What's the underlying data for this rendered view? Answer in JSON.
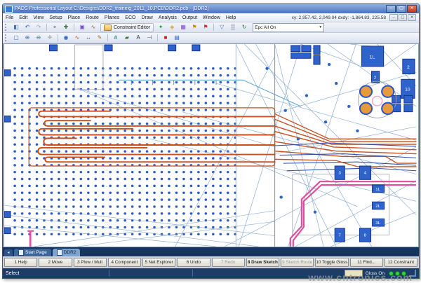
{
  "window": {
    "title": "PADS Professional Layout  C:\\Designs\\DDR2_training_2011_10.PCB\\DDR2.pcb - [DDR2]",
    "controls": {
      "minimize": "–",
      "maximize": "▢",
      "close": "✕"
    }
  },
  "menu_bar": {
    "items": [
      "File",
      "Edit",
      "View",
      "Setup",
      "Place",
      "Route",
      "Planes",
      "ECO",
      "Draw",
      "Analysis",
      "Output",
      "Window",
      "Help"
    ],
    "readout": "xy: 2,957.42, 2,049.04    dxdy: -1,864.83, 225.58",
    "child_controls": [
      "–",
      "▢",
      "✕"
    ]
  },
  "toolbars": {
    "row1a": [
      {
        "name": "save-icon",
        "glyph": "◧",
        "color": "#4a6fb5"
      },
      {
        "name": "undo-icon",
        "glyph": "↶",
        "color": "#2a62c9"
      },
      {
        "name": "redo-icon",
        "glyph": "↷",
        "color": "#9aa4b5"
      },
      {
        "sep": true
      },
      {
        "name": "select-icon",
        "glyph": "⌖",
        "color": "#555555"
      },
      {
        "name": "move-icon",
        "glyph": "✚",
        "color": "#3a7a3a"
      },
      {
        "sep": true
      },
      {
        "name": "place-part-icon",
        "glyph": "▣",
        "color": "#7a4bd0"
      },
      {
        "name": "route-icon",
        "glyph": "∿",
        "color": "#c8501e"
      }
    ],
    "constraint_editor_label": "Constraint Editor",
    "row1b": [
      {
        "name": "drc-ok-icon",
        "glyph": "✦",
        "color": "#1f9d2f"
      },
      {
        "name": "drc-info-icon",
        "glyph": "◈",
        "color": "#e0a020"
      },
      {
        "name": "layers-icon",
        "glyph": "▦",
        "color": "#8a4ad0"
      },
      {
        "name": "hazard-warning-icon",
        "glyph": "⚑",
        "color": "#cc8a00"
      },
      {
        "name": "hazard-error-icon",
        "glyph": "⚑",
        "color": "#c03030"
      },
      {
        "sep": true
      },
      {
        "name": "filter-icon",
        "glyph": "▽",
        "color": "#4a6fb5"
      },
      {
        "name": "grid-icon",
        "glyph": "▒",
        "color": "#6a7a90"
      },
      {
        "name": "refresh-icon",
        "glyph": "↻",
        "color": "#3a7a3a"
      }
    ],
    "scheme_value": "Epc All On",
    "row2": [
      {
        "name": "zoom-fit-icon",
        "glyph": "▢",
        "color": "#4a6fb5"
      },
      {
        "name": "zoom-in-icon",
        "glyph": "⊕",
        "color": "#4a6fb5"
      },
      {
        "name": "zoom-out-icon",
        "glyph": "⊖",
        "color": "#4a6fb5"
      },
      {
        "name": "pan-icon",
        "glyph": "✛",
        "color": "#888888"
      },
      {
        "sep": true
      },
      {
        "name": "add-via-icon",
        "glyph": "◉",
        "color": "#2a62c9"
      },
      {
        "name": "add-trace-icon",
        "glyph": "∿",
        "color": "#c8501e"
      },
      {
        "name": "measure-icon",
        "glyph": "↔",
        "color": "#555555"
      },
      {
        "name": "edit-icon",
        "glyph": "✎",
        "color": "#b06a2a"
      },
      {
        "sep": true
      },
      {
        "name": "net-explorer-icon",
        "glyph": "⋔",
        "color": "#2a8a8a"
      },
      {
        "name": "plane-icon",
        "glyph": "▰",
        "color": "#3a7a3a"
      },
      {
        "name": "text-icon",
        "glyph": "A",
        "color": "#333333"
      },
      {
        "name": "dimension-icon",
        "glyph": "⊣",
        "color": "#555555"
      },
      {
        "sep": true
      },
      {
        "name": "error-marker-icon",
        "glyph": "■",
        "color": "#c02020"
      },
      {
        "name": "layer-stack-icon",
        "glyph": "▤",
        "color": "#2a62c9"
      }
    ]
  },
  "canvas": {
    "pad_labels": {
      "big_square": "1L",
      "right_a": "2",
      "right_b": "10",
      "via_cluster_top": "2",
      "bottom": [
        "3",
        "4",
        "1L",
        "2L",
        "3L",
        "7",
        "8"
      ]
    }
  },
  "doc_tabs": {
    "nav_arrow": "◂",
    "tabs": [
      {
        "label": "Start Page",
        "active": false
      },
      {
        "label": "DDR2",
        "active": true
      }
    ]
  },
  "function_keys": [
    {
      "label": "1 Help"
    },
    {
      "label": "2 Move"
    },
    {
      "label": "3 Plow / Mult"
    },
    {
      "label": "4 Component"
    },
    {
      "label": "5 Net Explorer"
    },
    {
      "label": "6 Undo"
    },
    {
      "label": "7 Redo",
      "disabled": true
    },
    {
      "label": "8 Draw Sketch",
      "emphasis": true
    },
    {
      "label": "9 Sketch Route",
      "disabled": true
    },
    {
      "label": "10 Toggle Gloss"
    },
    {
      "label": "11 Find..."
    },
    {
      "label": "12 Constraint"
    }
  ],
  "status_bar": {
    "mode": "Select",
    "gloss_label": "Gloss On"
  },
  "watermark": "www.cntronics.com",
  "colors": {
    "dot_blue": "#2e5ec4",
    "pad_blue": "#2f63cc",
    "pad_outline": "#15338f",
    "trace_orange": "#c8501e",
    "trace_pink": "#de4f9c",
    "ratsnest": "#7aa0cc",
    "via_orange": "#e69a3c",
    "status_navy": "#1d3c66"
  }
}
